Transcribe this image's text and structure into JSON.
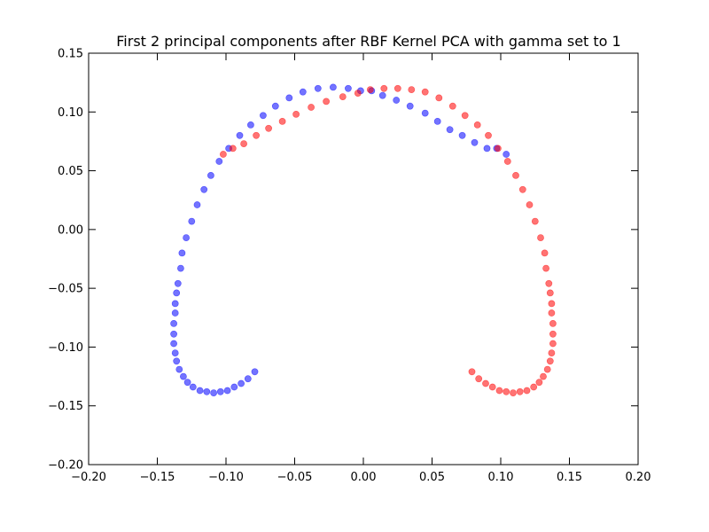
{
  "chart_data": {
    "type": "scatter",
    "title": "First 2 principal components after RBF Kernel PCA with gamma set to 1",
    "xlabel": "",
    "ylabel": "",
    "xlim": [
      -0.2,
      0.2
    ],
    "ylim": [
      -0.2,
      0.15
    ],
    "x_ticks": [
      "−0.20",
      "−0.15",
      "−0.10",
      "−0.05",
      "0.00",
      "0.05",
      "0.10",
      "0.15",
      "0.20"
    ],
    "x_tick_values": [
      -0.2,
      -0.15,
      -0.1,
      -0.05,
      0.0,
      0.05,
      0.1,
      0.15,
      0.2
    ],
    "y_ticks": [
      "0.15",
      "0.10",
      "0.05",
      "0.00",
      "−0.05",
      "−0.10",
      "−0.15",
      "−0.20"
    ],
    "y_tick_values": [
      0.15,
      0.1,
      0.05,
      0.0,
      -0.05,
      -0.1,
      -0.15,
      -0.2
    ],
    "grid": false,
    "series": [
      {
        "color": "#0000ff",
        "alpha": 0.55,
        "points": [
          [
            -0.079,
            -0.121
          ],
          [
            -0.084,
            -0.127
          ],
          [
            -0.089,
            -0.131
          ],
          [
            -0.094,
            -0.134
          ],
          [
            -0.099,
            -0.137
          ],
          [
            -0.104,
            -0.138
          ],
          [
            -0.109,
            -0.139
          ],
          [
            -0.114,
            -0.138
          ],
          [
            -0.119,
            -0.137
          ],
          [
            -0.124,
            -0.134
          ],
          [
            -0.128,
            -0.13
          ],
          [
            -0.131,
            -0.125
          ],
          [
            -0.134,
            -0.119
          ],
          [
            -0.136,
            -0.112
          ],
          [
            -0.137,
            -0.105
          ],
          [
            -0.138,
            -0.097
          ],
          [
            -0.138,
            -0.089
          ],
          [
            -0.138,
            -0.08
          ],
          [
            -0.137,
            -0.071
          ],
          [
            -0.137,
            -0.063
          ],
          [
            -0.136,
            -0.054
          ],
          [
            -0.135,
            -0.046
          ],
          [
            -0.133,
            -0.033
          ],
          [
            -0.132,
            -0.02
          ],
          [
            -0.129,
            -0.007
          ],
          [
            -0.125,
            0.007
          ],
          [
            -0.121,
            0.021
          ],
          [
            -0.116,
            0.034
          ],
          [
            -0.111,
            0.046
          ],
          [
            -0.105,
            0.058
          ],
          [
            -0.098,
            0.069
          ],
          [
            -0.09,
            0.08
          ],
          [
            -0.082,
            0.089
          ],
          [
            -0.073,
            0.097
          ],
          [
            -0.064,
            0.105
          ],
          [
            -0.054,
            0.112
          ],
          [
            -0.044,
            0.117
          ],
          [
            -0.033,
            0.12
          ],
          [
            -0.022,
            0.121
          ],
          [
            -0.011,
            0.12
          ],
          [
            -0.002,
            0.118
          ],
          [
            0.006,
            0.118
          ],
          [
            0.014,
            0.114
          ],
          [
            0.024,
            0.11
          ],
          [
            0.034,
            0.105
          ],
          [
            0.045,
            0.099
          ],
          [
            0.054,
            0.092
          ],
          [
            0.063,
            0.085
          ],
          [
            0.072,
            0.08
          ],
          [
            0.081,
            0.074
          ],
          [
            0.09,
            0.069
          ],
          [
            0.097,
            0.069
          ],
          [
            0.104,
            0.064
          ]
        ]
      },
      {
        "color": "#ff0000",
        "alpha": 0.55,
        "points": [
          [
            0.079,
            -0.121
          ],
          [
            0.084,
            -0.127
          ],
          [
            0.089,
            -0.131
          ],
          [
            0.094,
            -0.134
          ],
          [
            0.099,
            -0.137
          ],
          [
            0.104,
            -0.138
          ],
          [
            0.109,
            -0.139
          ],
          [
            0.114,
            -0.138
          ],
          [
            0.119,
            -0.137
          ],
          [
            0.124,
            -0.134
          ],
          [
            0.128,
            -0.13
          ],
          [
            0.131,
            -0.125
          ],
          [
            0.134,
            -0.119
          ],
          [
            0.136,
            -0.112
          ],
          [
            0.137,
            -0.105
          ],
          [
            0.138,
            -0.097
          ],
          [
            0.138,
            -0.089
          ],
          [
            0.138,
            -0.08
          ],
          [
            0.137,
            -0.071
          ],
          [
            0.137,
            -0.063
          ],
          [
            0.136,
            -0.054
          ],
          [
            0.135,
            -0.046
          ],
          [
            0.133,
            -0.033
          ],
          [
            0.132,
            -0.02
          ],
          [
            0.129,
            -0.007
          ],
          [
            0.125,
            0.007
          ],
          [
            0.121,
            0.021
          ],
          [
            0.116,
            0.034
          ],
          [
            0.111,
            0.046
          ],
          [
            0.105,
            0.058
          ],
          [
            0.098,
            0.069
          ],
          [
            0.091,
            0.08
          ],
          [
            0.083,
            0.089
          ],
          [
            0.074,
            0.097
          ],
          [
            0.065,
            0.105
          ],
          [
            0.055,
            0.112
          ],
          [
            0.045,
            0.117
          ],
          [
            0.035,
            0.119
          ],
          [
            0.025,
            0.12
          ],
          [
            0.015,
            0.12
          ],
          [
            0.005,
            0.119
          ],
          [
            -0.004,
            0.116
          ],
          [
            -0.015,
            0.113
          ],
          [
            -0.027,
            0.109
          ],
          [
            -0.038,
            0.104
          ],
          [
            -0.049,
            0.098
          ],
          [
            -0.059,
            0.092
          ],
          [
            -0.069,
            0.086
          ],
          [
            -0.078,
            0.08
          ],
          [
            -0.087,
            0.073
          ],
          [
            -0.095,
            0.069
          ],
          [
            -0.102,
            0.064
          ]
        ]
      }
    ]
  }
}
